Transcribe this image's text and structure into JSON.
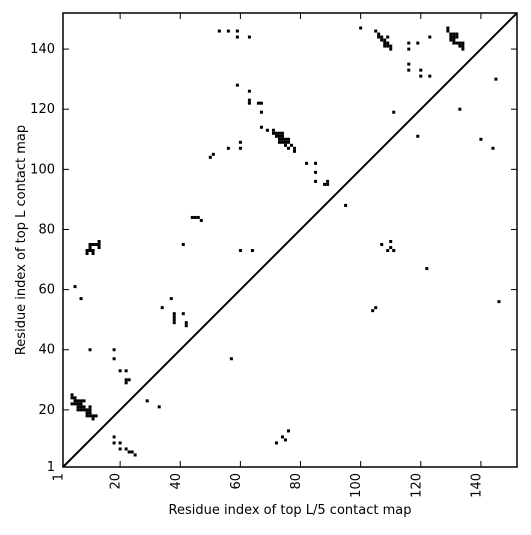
{
  "chart_data": {
    "type": "scatter",
    "title": "",
    "xlabel": "Residue index of top L/5 contact map",
    "ylabel": "Residue index of top L contact map",
    "xlim": [
      1,
      152
    ],
    "ylim": [
      1,
      152
    ],
    "grid": false,
    "diagonal": true,
    "marker": "square",
    "colors": {
      "points": "#000000",
      "diagonal": "#000000",
      "axes": "#000000",
      "background": "#ffffff"
    },
    "x_ticks": [
      1,
      20,
      40,
      60,
      80,
      100,
      120,
      140
    ],
    "y_ticks": [
      1,
      20,
      40,
      60,
      80,
      100,
      120,
      140
    ],
    "points": [
      [
        4,
        25
      ],
      [
        4,
        24
      ],
      [
        4,
        22
      ],
      [
        5,
        24
      ],
      [
        5,
        23
      ],
      [
        5,
        22
      ],
      [
        6,
        23
      ],
      [
        6,
        22
      ],
      [
        6,
        21
      ],
      [
        6,
        20
      ],
      [
        7,
        23
      ],
      [
        7,
        22
      ],
      [
        7,
        21
      ],
      [
        7,
        20
      ],
      [
        8,
        23
      ],
      [
        8,
        21
      ],
      [
        8,
        20
      ],
      [
        9,
        20
      ],
      [
        9,
        19
      ],
      [
        9,
        18
      ],
      [
        10,
        21
      ],
      [
        10,
        20
      ],
      [
        10,
        19
      ],
      [
        10,
        18
      ],
      [
        11,
        18
      ],
      [
        11,
        17
      ],
      [
        12,
        18
      ],
      [
        9,
        73
      ],
      [
        9,
        72
      ],
      [
        10,
        75
      ],
      [
        10,
        74
      ],
      [
        10,
        73
      ],
      [
        11,
        75
      ],
      [
        11,
        73
      ],
      [
        11,
        72
      ],
      [
        12,
        75
      ],
      [
        13,
        76
      ],
      [
        13,
        75
      ],
      [
        13,
        74
      ],
      [
        5,
        61
      ],
      [
        7,
        57
      ],
      [
        10,
        40
      ],
      [
        18,
        40
      ],
      [
        18,
        37
      ],
      [
        20,
        33
      ],
      [
        22,
        33
      ],
      [
        22,
        30
      ],
      [
        22,
        29
      ],
      [
        23,
        30
      ],
      [
        29,
        23
      ],
      [
        33,
        21
      ],
      [
        34,
        54
      ],
      [
        37,
        57
      ],
      [
        38,
        52
      ],
      [
        38,
        51
      ],
      [
        38,
        50
      ],
      [
        38,
        49
      ],
      [
        41,
        52
      ],
      [
        41,
        75
      ],
      [
        42,
        49
      ],
      [
        42,
        48
      ],
      [
        18,
        11
      ],
      [
        18,
        9
      ],
      [
        20,
        9
      ],
      [
        20,
        7
      ],
      [
        22,
        7
      ],
      [
        23,
        6
      ],
      [
        24,
        6
      ],
      [
        25,
        5
      ],
      [
        44,
        84
      ],
      [
        45,
        84
      ],
      [
        46,
        84
      ],
      [
        47,
        83
      ],
      [
        50,
        104
      ],
      [
        51,
        105
      ],
      [
        53,
        146
      ],
      [
        56,
        146
      ],
      [
        56,
        107
      ],
      [
        57,
        37
      ],
      [
        59,
        146
      ],
      [
        59,
        144
      ],
      [
        59,
        128
      ],
      [
        60,
        109
      ],
      [
        60,
        107
      ],
      [
        60,
        73
      ],
      [
        63,
        144
      ],
      [
        63,
        126
      ],
      [
        63,
        123
      ],
      [
        63,
        122
      ],
      [
        64,
        73
      ],
      [
        66,
        122
      ],
      [
        67,
        122
      ],
      [
        67,
        119
      ],
      [
        67,
        114
      ],
      [
        69,
        113
      ],
      [
        71,
        113
      ],
      [
        71,
        112
      ],
      [
        72,
        112
      ],
      [
        72,
        111
      ],
      [
        73,
        112
      ],
      [
        73,
        111
      ],
      [
        73,
        110
      ],
      [
        73,
        109
      ],
      [
        74,
        112
      ],
      [
        74,
        111
      ],
      [
        74,
        110
      ],
      [
        74,
        109
      ],
      [
        75,
        110
      ],
      [
        75,
        109
      ],
      [
        75,
        108
      ],
      [
        76,
        110
      ],
      [
        76,
        109
      ],
      [
        76,
        107
      ],
      [
        77,
        108
      ],
      [
        78,
        107
      ],
      [
        78,
        106
      ],
      [
        72,
        9
      ],
      [
        74,
        11
      ],
      [
        75,
        10
      ],
      [
        76,
        13
      ],
      [
        82,
        102
      ],
      [
        85,
        102
      ],
      [
        85,
        99
      ],
      [
        85,
        96
      ],
      [
        88,
        95
      ],
      [
        89,
        96
      ],
      [
        89,
        95
      ],
      [
        95,
        88
      ],
      [
        100,
        147
      ],
      [
        104,
        53
      ],
      [
        105,
        54
      ],
      [
        105,
        146
      ],
      [
        106,
        145
      ],
      [
        106,
        144
      ],
      [
        107,
        144
      ],
      [
        107,
        143
      ],
      [
        107,
        75
      ],
      [
        108,
        143
      ],
      [
        108,
        142
      ],
      [
        108,
        141
      ],
      [
        109,
        144
      ],
      [
        109,
        142
      ],
      [
        109,
        141
      ],
      [
        109,
        73
      ],
      [
        110,
        141
      ],
      [
        110,
        140
      ],
      [
        110,
        76
      ],
      [
        110,
        74
      ],
      [
        111,
        119
      ],
      [
        111,
        73
      ],
      [
        116,
        142
      ],
      [
        116,
        140
      ],
      [
        116,
        135
      ],
      [
        116,
        133
      ],
      [
        119,
        142
      ],
      [
        119,
        111
      ],
      [
        120,
        133
      ],
      [
        120,
        131
      ],
      [
        122,
        67
      ],
      [
        123,
        144
      ],
      [
        123,
        131
      ],
      [
        129,
        147
      ],
      [
        129,
        146
      ],
      [
        130,
        145
      ],
      [
        130,
        144
      ],
      [
        130,
        143
      ],
      [
        131,
        145
      ],
      [
        131,
        144
      ],
      [
        131,
        143
      ],
      [
        131,
        142
      ],
      [
        132,
        145
      ],
      [
        132,
        144
      ],
      [
        132,
        142
      ],
      [
        133,
        142
      ],
      [
        133,
        141
      ],
      [
        133,
        120
      ],
      [
        134,
        142
      ],
      [
        134,
        141
      ],
      [
        134,
        140
      ],
      [
        140,
        110
      ],
      [
        144,
        107
      ],
      [
        145,
        130
      ],
      [
        146,
        56
      ]
    ]
  }
}
